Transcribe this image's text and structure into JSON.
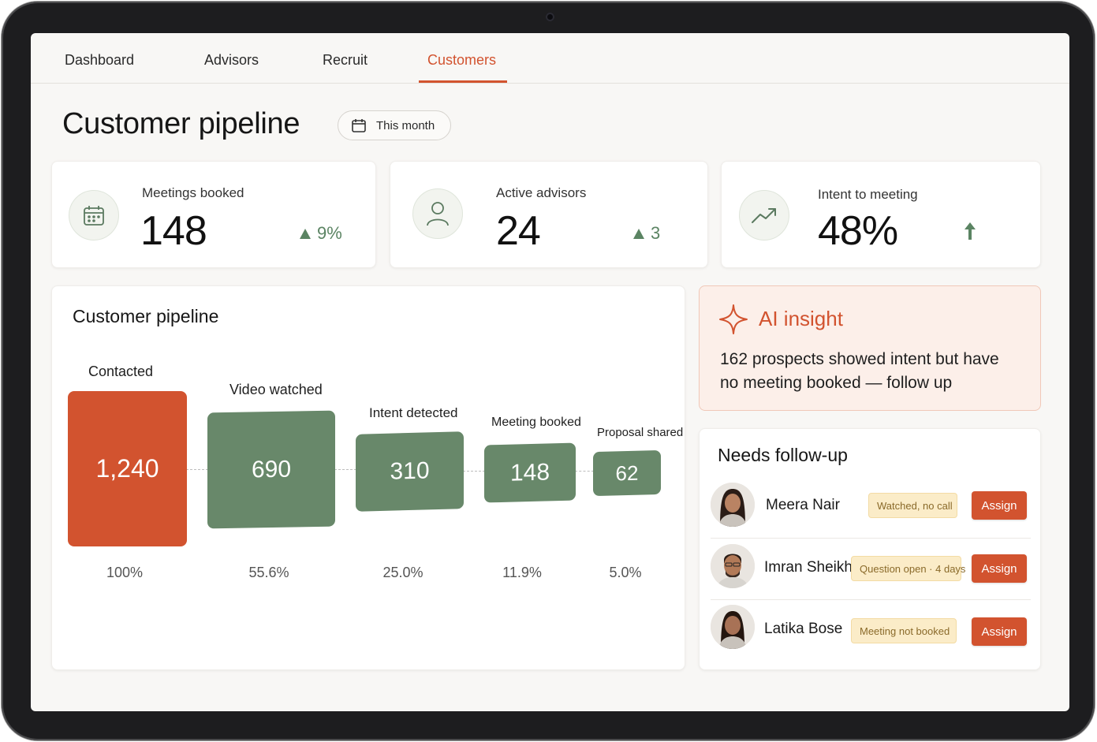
{
  "nav": {
    "tabs": [
      {
        "label": "Dashboard"
      },
      {
        "label": "Advisors"
      },
      {
        "label": "Recruit"
      },
      {
        "label": "Customers"
      }
    ],
    "active_tab": "Customers"
  },
  "header": {
    "title": "Customer pipeline",
    "period_label": "This month",
    "period_icon": "calendar-icon"
  },
  "kpis": [
    {
      "label": "Meetings booked",
      "value": "148",
      "delta": "9%",
      "icon": "calendar-icon"
    },
    {
      "label": "Active advisors",
      "value": "24",
      "delta": "3",
      "icon": "person-icon"
    },
    {
      "label": "Intent to meeting",
      "value": "48%",
      "delta": "",
      "icon": "trend-up-icon"
    }
  ],
  "pipeline": {
    "title": "Customer pipeline",
    "stages": [
      {
        "label": "Contacted",
        "value": "1,240",
        "percent": "100%"
      },
      {
        "label": "Video watched",
        "value": "690",
        "percent": "55.6%"
      },
      {
        "label": "Intent detected",
        "value": "310",
        "percent": "25.0%"
      },
      {
        "label": "Meeting booked",
        "value": "148",
        "percent": "11.9%"
      },
      {
        "label": "Proposal shared",
        "value": "62",
        "percent": "5.0%"
      }
    ]
  },
  "insight": {
    "title": "AI insight",
    "text": "162 prospects showed intent but have no meeting booked — follow up",
    "icon": "sparkle-icon"
  },
  "followup": {
    "title": "Needs follow-up",
    "people": [
      {
        "name": "Meera Nair",
        "status": "Watched, no call",
        "action": "Assign"
      },
      {
        "name": "Imran Sheikh",
        "status": "Question open · 4 days",
        "action": "Assign"
      },
      {
        "name": "Latika Bose",
        "status": "Meeting not booked",
        "action": "Assign"
      }
    ]
  },
  "colors": {
    "accent": "#d2532f",
    "green": "#68886a",
    "badge_bg": "#fbecc8"
  }
}
